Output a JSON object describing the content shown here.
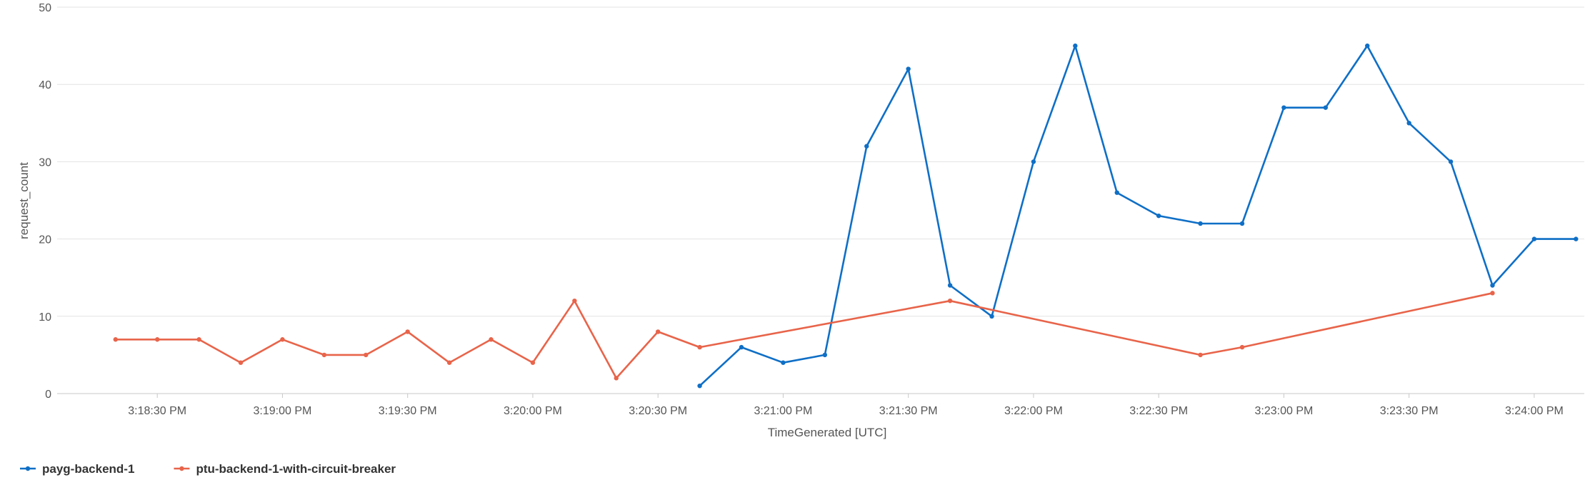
{
  "chart_data": {
    "type": "line",
    "xlabel": "TimeGenerated [UTC]",
    "ylabel": "request_count",
    "ylim": [
      0,
      50
    ],
    "yticks": [
      0,
      10,
      20,
      30,
      40,
      50
    ],
    "xlim": [
      "3:18:06 PM",
      "3:24:12 PM"
    ],
    "xticks": [
      "3:18:30 PM",
      "3:19:00 PM",
      "3:19:30 PM",
      "3:20:00 PM",
      "3:20:30 PM",
      "3:21:00 PM",
      "3:21:30 PM",
      "3:22:00 PM",
      "3:22:30 PM",
      "3:23:00 PM",
      "3:23:30 PM",
      "3:24:00 PM"
    ],
    "grid": true,
    "legend_position": "bottom-left",
    "series": [
      {
        "name": "payg-backend-1",
        "color": "#0f6fc6",
        "points": [
          {
            "x": "3:20:40 PM",
            "y": 1
          },
          {
            "x": "3:20:50 PM",
            "y": 6
          },
          {
            "x": "3:21:00 PM",
            "y": 4
          },
          {
            "x": "3:21:10 PM",
            "y": 5
          },
          {
            "x": "3:21:20 PM",
            "y": 32
          },
          {
            "x": "3:21:30 PM",
            "y": 42
          },
          {
            "x": "3:21:40 PM",
            "y": 14
          },
          {
            "x": "3:21:50 PM",
            "y": 10
          },
          {
            "x": "3:22:00 PM",
            "y": 30
          },
          {
            "x": "3:22:10 PM",
            "y": 45
          },
          {
            "x": "3:22:20 PM",
            "y": 26
          },
          {
            "x": "3:22:30 PM",
            "y": 23
          },
          {
            "x": "3:22:40 PM",
            "y": 22
          },
          {
            "x": "3:22:50 PM",
            "y": 22
          },
          {
            "x": "3:23:00 PM",
            "y": 37
          },
          {
            "x": "3:23:10 PM",
            "y": 37
          },
          {
            "x": "3:23:20 PM",
            "y": 45
          },
          {
            "x": "3:23:30 PM",
            "y": 35
          },
          {
            "x": "3:23:40 PM",
            "y": 30
          },
          {
            "x": "3:23:50 PM",
            "y": 14
          },
          {
            "x": "3:24:00 PM",
            "y": 20
          },
          {
            "x": "3:24:10 PM",
            "y": 20
          }
        ]
      },
      {
        "name": "ptu-backend-1-with-circuit-breaker",
        "color": "#e8644a",
        "points": [
          {
            "x": "3:18:20 PM",
            "y": 7
          },
          {
            "x": "3:18:30 PM",
            "y": 7
          },
          {
            "x": "3:18:40 PM",
            "y": 7
          },
          {
            "x": "3:18:50 PM",
            "y": 4
          },
          {
            "x": "3:19:00 PM",
            "y": 7
          },
          {
            "x": "3:19:10 PM",
            "y": 5
          },
          {
            "x": "3:19:20 PM",
            "y": 5
          },
          {
            "x": "3:19:30 PM",
            "y": 8
          },
          {
            "x": "3:19:40 PM",
            "y": 4
          },
          {
            "x": "3:19:50 PM",
            "y": 7
          },
          {
            "x": "3:20:00 PM",
            "y": 4
          },
          {
            "x": "3:20:10 PM",
            "y": 12
          },
          {
            "x": "3:20:20 PM",
            "y": 2
          },
          {
            "x": "3:20:30 PM",
            "y": 8
          },
          {
            "x": "3:20:40 PM",
            "y": 6
          },
          {
            "x": "3:21:40 PM",
            "y": 12
          },
          {
            "x": "3:22:40 PM",
            "y": 5
          },
          {
            "x": "3:22:50 PM",
            "y": 6
          },
          {
            "x": "3:23:50 PM",
            "y": 13
          }
        ]
      }
    ]
  }
}
